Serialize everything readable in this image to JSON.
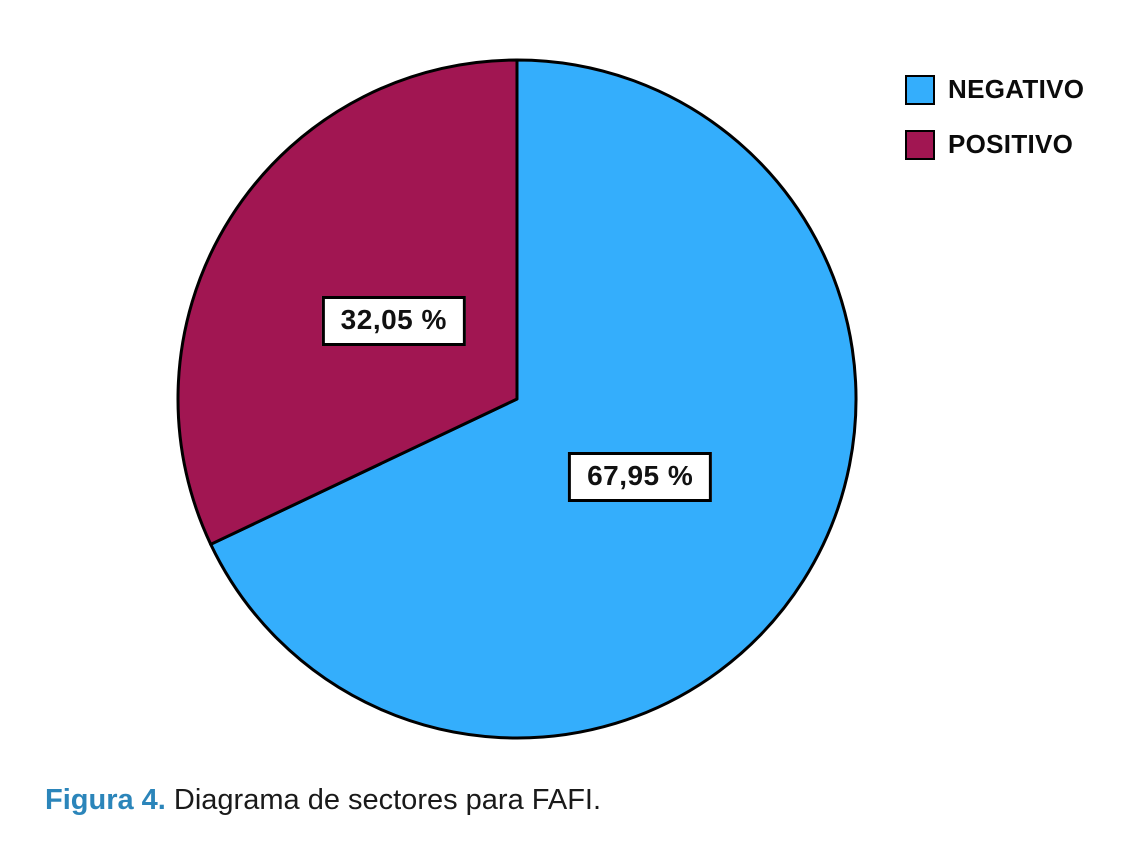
{
  "figure": {
    "caption_label": "Figura 4.",
    "caption_text": " Diagrama de sectores para FAFI."
  },
  "legend": {
    "position": "top-right",
    "items": [
      {
        "label": "NEGATIVO",
        "color": "#34aefc"
      },
      {
        "label": "POSITIVO",
        "color": "#a11652"
      }
    ]
  },
  "chart_data": {
    "type": "pie",
    "title": "Figura 4. Diagrama de sectores para FAFI.",
    "categories": [
      "NEGATIVO",
      "POSITIVO"
    ],
    "values": [
      67.95,
      32.05
    ],
    "value_labels": [
      "67,95 %",
      "32,05 %"
    ],
    "colors": [
      "#34aefc",
      "#a11652"
    ],
    "stroke_color": "#000000",
    "stroke_width": 3,
    "start_angle_deg": -90,
    "direction": "clockwise",
    "legend_position": "top-right",
    "label_radius_ratio": 0.43
  }
}
